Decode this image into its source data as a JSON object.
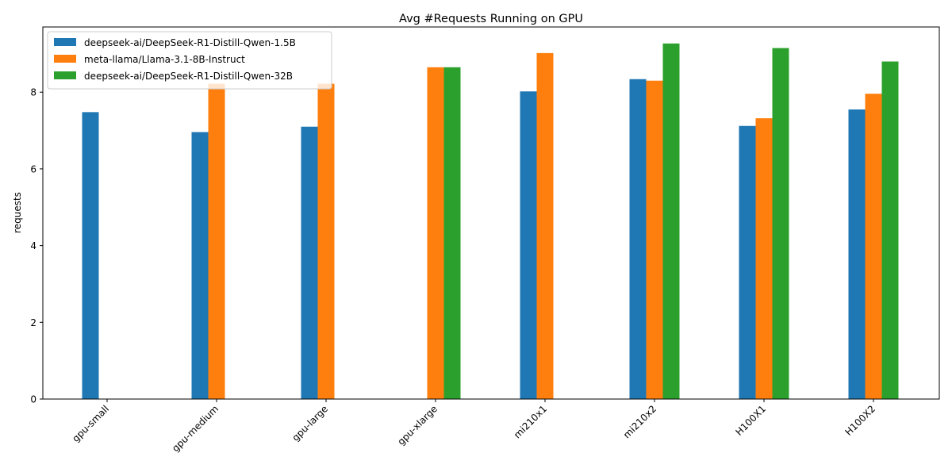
{
  "chart_data": {
    "type": "bar",
    "title": "Avg #Requests Running on GPU",
    "xlabel": "",
    "ylabel": "requests",
    "ylim": [
      0,
      9.7
    ],
    "yticks": [
      0,
      2,
      4,
      6,
      8
    ],
    "categories": [
      "gpu-small",
      "gpu-medium",
      "gpu-large",
      "gpu-xlarge",
      "mi210x1",
      "mi210x2",
      "H100X1",
      "H100X2"
    ],
    "series": [
      {
        "name": "deepseek-ai/DeepSeek-R1-Distill-Qwen-1.5B",
        "color": "#1f77b4",
        "values": [
          7.48,
          6.96,
          7.1,
          null,
          8.02,
          8.34,
          7.12,
          7.55
        ]
      },
      {
        "name": "meta-llama/Llama-3.1-8B-Instruct",
        "color": "#ff7f0e",
        "values": [
          null,
          8.22,
          8.22,
          8.65,
          9.02,
          8.3,
          7.32,
          7.96
        ]
      },
      {
        "name": "deepseek-ai/DeepSeek-R1-Distill-Qwen-32B",
        "color": "#2ca02c",
        "values": [
          null,
          null,
          null,
          8.65,
          null,
          9.27,
          9.15,
          8.8
        ]
      }
    ],
    "legend_position": "upper-left",
    "grid": false
  }
}
